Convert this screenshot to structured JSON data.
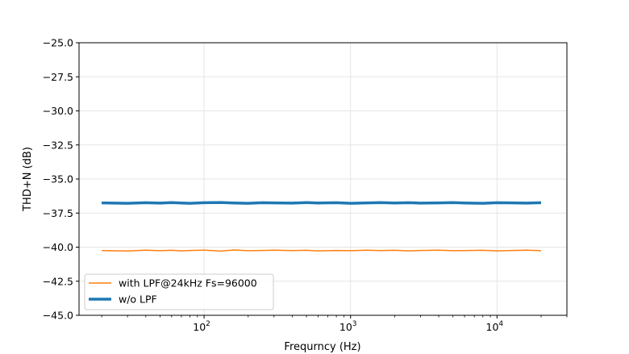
{
  "chart_data": {
    "type": "line",
    "title": "",
    "xlabel": "Frequrncy (Hz)",
    "ylabel": "THD+N (dB)",
    "xscale": "log",
    "xlim": [
      14,
      30000
    ],
    "ylim": [
      -45.0,
      -25.0
    ],
    "grid": true,
    "legend_position": "lower-left",
    "y_ticks": [
      "-25.0",
      "-27.5",
      "-30.0",
      "-32.5",
      "-35.0",
      "-37.5",
      "-40.0",
      "-42.5",
      "-45.0"
    ],
    "x_ticks": [
      {
        "value": 100,
        "base": "10",
        "exp": "2"
      },
      {
        "value": 1000,
        "base": "10",
        "exp": "3"
      },
      {
        "value": 10000,
        "base": "10",
        "exp": "4"
      }
    ],
    "series": [
      {
        "name": "with LPF@24kHz Fs=96000",
        "color": "#ff7f0e",
        "x": [
          20,
          30,
          40,
          50,
          60,
          70,
          80,
          100,
          130,
          160,
          200,
          250,
          300,
          400,
          500,
          600,
          800,
          1000,
          1300,
          1600,
          2000,
          2500,
          3000,
          4000,
          5000,
          6000,
          8000,
          10000,
          13000,
          16000,
          20000
        ],
        "y": [
          -40.25,
          -40.28,
          -40.22,
          -40.26,
          -40.23,
          -40.27,
          -40.24,
          -40.22,
          -40.29,
          -40.21,
          -40.26,
          -40.24,
          -40.22,
          -40.25,
          -40.23,
          -40.27,
          -40.24,
          -40.26,
          -40.22,
          -40.25,
          -40.23,
          -40.27,
          -40.24,
          -40.22,
          -40.26,
          -40.25,
          -40.23,
          -40.27,
          -40.24,
          -40.22,
          -40.26
        ]
      },
      {
        "name": "w/o LPF",
        "color": "#1f77b4",
        "x": [
          20,
          30,
          40,
          50,
          60,
          70,
          80,
          100,
          130,
          160,
          200,
          250,
          300,
          400,
          500,
          600,
          800,
          1000,
          1300,
          1600,
          2000,
          2500,
          3000,
          4000,
          5000,
          6000,
          8000,
          10000,
          13000,
          16000,
          20000
        ],
        "y": [
          -36.75,
          -36.78,
          -36.74,
          -36.77,
          -36.73,
          -36.76,
          -36.78,
          -36.74,
          -36.72,
          -36.76,
          -36.78,
          -36.74,
          -36.75,
          -36.77,
          -36.73,
          -36.76,
          -36.74,
          -36.78,
          -36.75,
          -36.73,
          -36.76,
          -36.74,
          -36.77,
          -36.75,
          -36.73,
          -36.76,
          -36.78,
          -36.74,
          -36.75,
          -36.77,
          -36.74
        ]
      }
    ]
  }
}
